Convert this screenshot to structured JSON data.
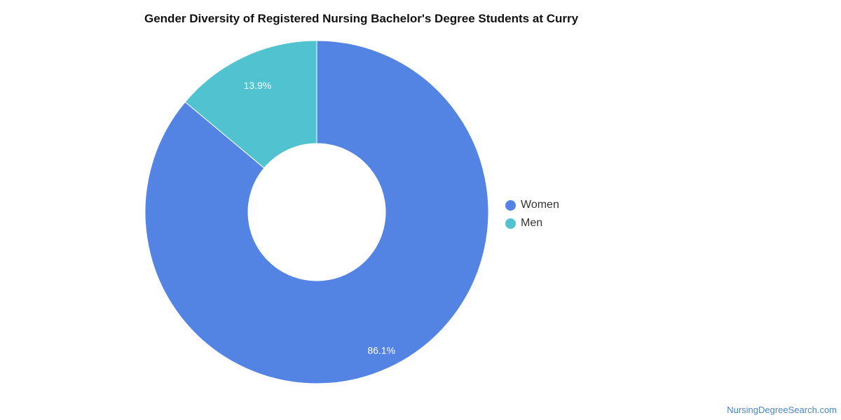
{
  "chart_data": {
    "type": "pie",
    "style": "donut",
    "title": "Gender Diversity of Registered Nursing Bachelor's Degree Students at Curry",
    "categories": [
      "Women",
      "Men"
    ],
    "values": [
      86.1,
      13.9
    ],
    "value_labels": [
      "86.1%",
      "13.9%"
    ],
    "colors": [
      "#5384e4",
      "#51c2cf"
    ],
    "legend_position": "right",
    "legend": [
      {
        "name": "Women",
        "color": "#5384e4"
      },
      {
        "name": "Men",
        "color": "#51c2cf"
      }
    ]
  },
  "footer": {
    "credit": "NursingDegreeSearch.com"
  }
}
